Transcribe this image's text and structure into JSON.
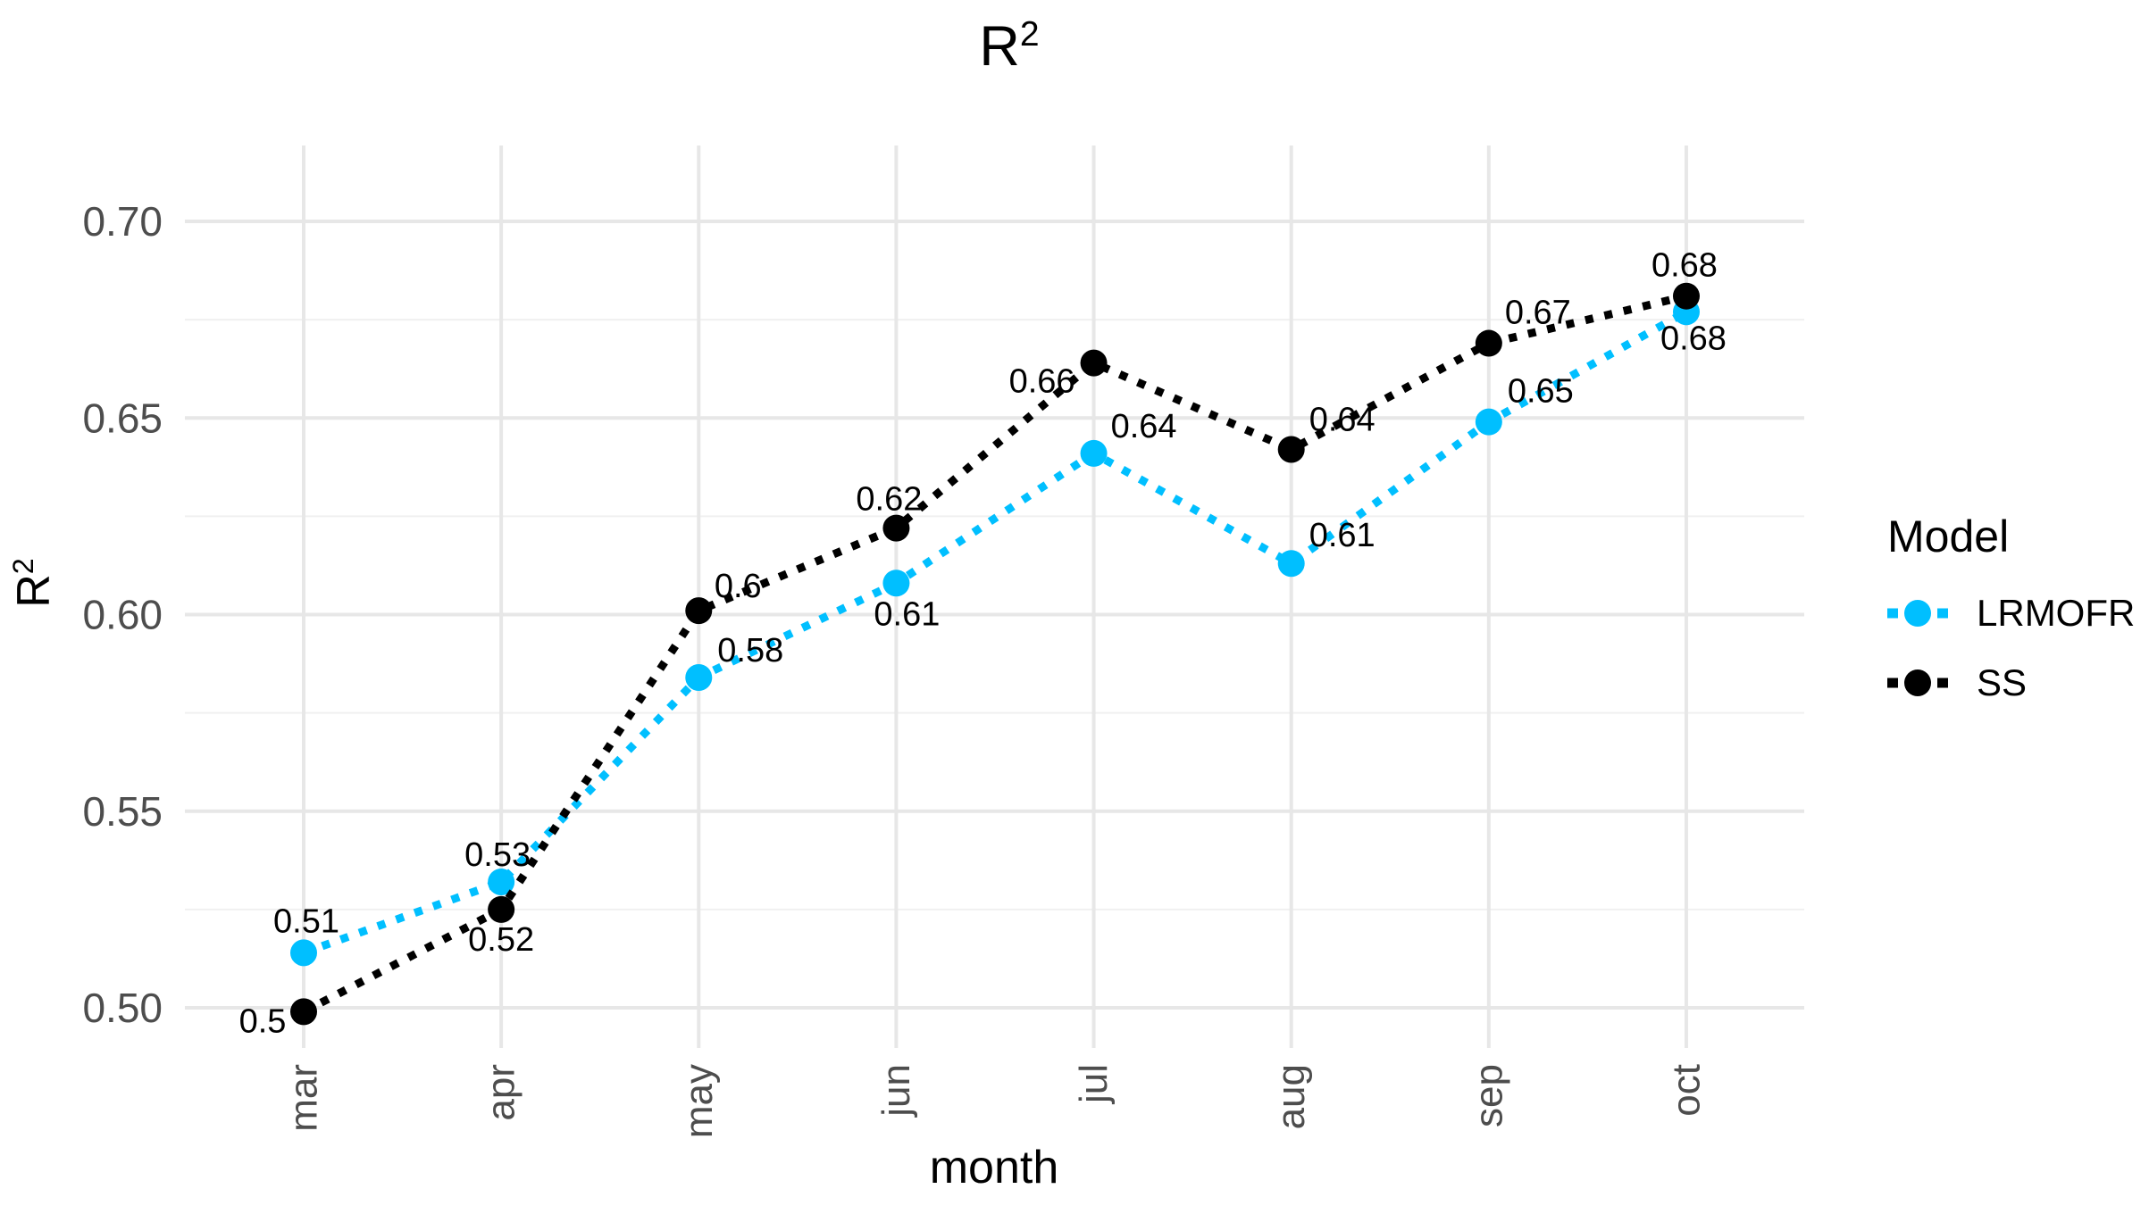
{
  "page": {
    "background": "#FFFFFF"
  },
  "chart_data": {
    "type": "line",
    "title": {
      "base": "R",
      "sup": "2"
    },
    "xlabel": "month",
    "ylabel": {
      "base": "R",
      "sup": "2"
    },
    "categories": [
      "mar",
      "apr",
      "may",
      "jun",
      "jul",
      "aug",
      "sep",
      "oct"
    ],
    "y_axis": {
      "tick_labels": [
        "0.50",
        "0.55",
        "0.60",
        "0.65",
        "0.70"
      ],
      "tick_values": [
        0.5,
        0.55,
        0.6,
        0.65,
        0.7
      ],
      "minor_values": [
        0.525,
        0.575,
        0.625,
        0.675
      ],
      "range": [
        0.489,
        0.7195
      ],
      "grid": "on"
    },
    "legend": {
      "title": "Model",
      "position": "right"
    },
    "series": [
      {
        "name": "LRMOFR",
        "color": "#00BFFF",
        "linetype": "dotted",
        "values": [
          0.514,
          0.532,
          0.584,
          0.608,
          0.641,
          0.613,
          0.649,
          0.677
        ],
        "labels": [
          "0.51",
          "0.53",
          "0.58",
          "0.61",
          "0.64",
          "0.61",
          "0.65",
          "0.68"
        ],
        "label_offsets": [
          [
            3,
            -35
          ],
          [
            -4,
            -30
          ],
          [
            58,
            -30
          ],
          [
            12,
            35
          ],
          [
            56,
            -30
          ],
          [
            57,
            -31
          ],
          [
            58,
            -34
          ],
          [
            8,
            30
          ]
        ]
      },
      {
        "name": "SS",
        "color": "#000000",
        "linetype": "dotted",
        "values": [
          0.499,
          0.525,
          0.601,
          0.622,
          0.664,
          0.642,
          0.669,
          0.681
        ],
        "labels": [
          "0.5",
          "0.52",
          "0.6",
          "0.62",
          "0.66",
          "0.64",
          "0.67",
          "0.68"
        ],
        "label_offsets": [
          [
            -46,
            11
          ],
          [
            0,
            34
          ],
          [
            44,
            -27
          ],
          [
            -8,
            -32
          ],
          [
            -58,
            21
          ],
          [
            57,
            -33
          ],
          [
            55,
            -34
          ],
          [
            -2,
            -34
          ]
        ]
      }
    ],
    "style": {
      "grid_major_color": "#E7E7E7",
      "grid_minor_color": "#F0F0F0",
      "tick_text_color": "#4D4D4D",
      "label_text_color": "#000000",
      "point_radius": 15,
      "line_width": 9,
      "dash_pattern": "9 13"
    }
  }
}
